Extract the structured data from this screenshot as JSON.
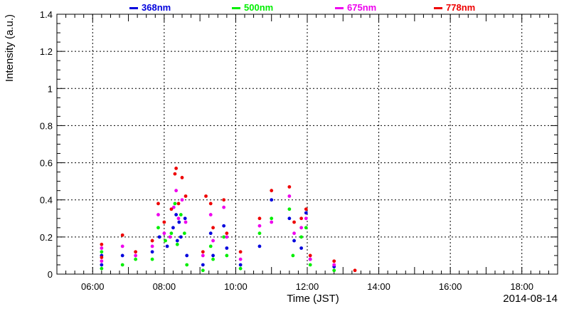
{
  "chart_data": {
    "type": "scatter",
    "xlabel": "Time (JST)",
    "ylabel": "Intensity (a.u.)",
    "date_label": "2014-08-14",
    "xlim": [
      "05:00",
      "19:00"
    ],
    "ylim": [
      0,
      1.4
    ],
    "x_ticks": [
      "06:00",
      "08:00",
      "10:00",
      "12:00",
      "14:00",
      "16:00",
      "18:00"
    ],
    "y_ticks": [
      "0",
      "0.2",
      "0.4",
      "0.6",
      "0.8",
      "1",
      "1.2",
      "1.4"
    ],
    "grid": true,
    "legend_position": "top",
    "series": [
      {
        "name": "368nm",
        "color": "#0000dd",
        "points": [
          [
            "06:15",
            0.1
          ],
          [
            "06:15",
            0.05
          ],
          [
            "06:50",
            0.1
          ],
          [
            "07:40",
            0.12
          ],
          [
            "07:52",
            0.2
          ],
          [
            "08:05",
            0.15
          ],
          [
            "08:15",
            0.25
          ],
          [
            "08:20",
            0.32
          ],
          [
            "08:22",
            0.18
          ],
          [
            "08:25",
            0.28
          ],
          [
            "08:28",
            0.2
          ],
          [
            "08:35",
            0.3
          ],
          [
            "08:38",
            0.1
          ],
          [
            "09:05",
            0.05
          ],
          [
            "09:18",
            0.22
          ],
          [
            "09:22",
            0.1
          ],
          [
            "09:40",
            0.26
          ],
          [
            "09:45",
            0.14
          ],
          [
            "10:08",
            0.05
          ],
          [
            "10:40",
            0.15
          ],
          [
            "11:00",
            0.4
          ],
          [
            "11:30",
            0.3
          ],
          [
            "11:38",
            0.18
          ],
          [
            "11:50",
            0.14
          ],
          [
            "11:58",
            0.33
          ],
          [
            "12:05",
            0.08
          ],
          [
            "12:45",
            0.04
          ]
        ]
      },
      {
        "name": "500nm",
        "color": "#00ee00",
        "points": [
          [
            "06:15",
            0.12
          ],
          [
            "06:15",
            0.03
          ],
          [
            "06:50",
            0.05
          ],
          [
            "07:12",
            0.08
          ],
          [
            "07:40",
            0.08
          ],
          [
            "07:50",
            0.25
          ],
          [
            "08:02",
            0.18
          ],
          [
            "08:12",
            0.22
          ],
          [
            "08:18",
            0.38
          ],
          [
            "08:22",
            0.16
          ],
          [
            "08:28",
            0.32
          ],
          [
            "08:34",
            0.22
          ],
          [
            "08:38",
            0.05
          ],
          [
            "09:05",
            0.02
          ],
          [
            "09:18",
            0.15
          ],
          [
            "09:22",
            0.08
          ],
          [
            "09:40",
            0.2
          ],
          [
            "09:45",
            0.1
          ],
          [
            "10:08",
            0.03
          ],
          [
            "10:40",
            0.22
          ],
          [
            "11:00",
            0.3
          ],
          [
            "11:30",
            0.35
          ],
          [
            "11:36",
            0.1
          ],
          [
            "11:50",
            0.2
          ],
          [
            "11:58",
            0.25
          ],
          [
            "12:05",
            0.05
          ],
          [
            "12:45",
            0.02
          ]
        ]
      },
      {
        "name": "675nm",
        "color": "#ee00ee",
        "points": [
          [
            "06:15",
            0.14
          ],
          [
            "06:15",
            0.07
          ],
          [
            "06:50",
            0.15
          ],
          [
            "07:12",
            0.1
          ],
          [
            "07:40",
            0.15
          ],
          [
            "07:50",
            0.32
          ],
          [
            "08:00",
            0.22
          ],
          [
            "08:10",
            0.2
          ],
          [
            "08:16",
            0.36
          ],
          [
            "08:20",
            0.45
          ],
          [
            "08:24",
            0.3
          ],
          [
            "08:30",
            0.4
          ],
          [
            "08:36",
            0.28
          ],
          [
            "09:05",
            0.1
          ],
          [
            "09:18",
            0.32
          ],
          [
            "09:22",
            0.18
          ],
          [
            "09:40",
            0.36
          ],
          [
            "09:45",
            0.2
          ],
          [
            "10:08",
            0.08
          ],
          [
            "10:40",
            0.26
          ],
          [
            "11:00",
            0.28
          ],
          [
            "11:30",
            0.42
          ],
          [
            "11:38",
            0.22
          ],
          [
            "11:50",
            0.25
          ],
          [
            "11:58",
            0.3
          ],
          [
            "12:05",
            0.08
          ],
          [
            "12:45",
            0.05
          ]
        ]
      },
      {
        "name": "778nm",
        "color": "#ee0000",
        "points": [
          [
            "06:15",
            0.16
          ],
          [
            "06:15",
            0.09
          ],
          [
            "06:50",
            0.21
          ],
          [
            "07:12",
            0.12
          ],
          [
            "07:40",
            0.18
          ],
          [
            "07:50",
            0.38
          ],
          [
            "08:00",
            0.28
          ],
          [
            "08:12",
            0.35
          ],
          [
            "08:18",
            0.54
          ],
          [
            "08:20",
            0.57
          ],
          [
            "08:24",
            0.38
          ],
          [
            "08:30",
            0.52
          ],
          [
            "08:36",
            0.42
          ],
          [
            "09:05",
            0.12
          ],
          [
            "09:10",
            0.42
          ],
          [
            "09:18",
            0.38
          ],
          [
            "09:22",
            0.25
          ],
          [
            "09:40",
            0.4
          ],
          [
            "09:45",
            0.22
          ],
          [
            "10:08",
            0.12
          ],
          [
            "10:40",
            0.3
          ],
          [
            "11:00",
            0.45
          ],
          [
            "11:30",
            0.47
          ],
          [
            "11:38",
            0.28
          ],
          [
            "11:50",
            0.3
          ],
          [
            "11:58",
            0.35
          ],
          [
            "12:05",
            0.1
          ],
          [
            "12:45",
            0.07
          ],
          [
            "13:20",
            0.02
          ]
        ]
      }
    ]
  }
}
